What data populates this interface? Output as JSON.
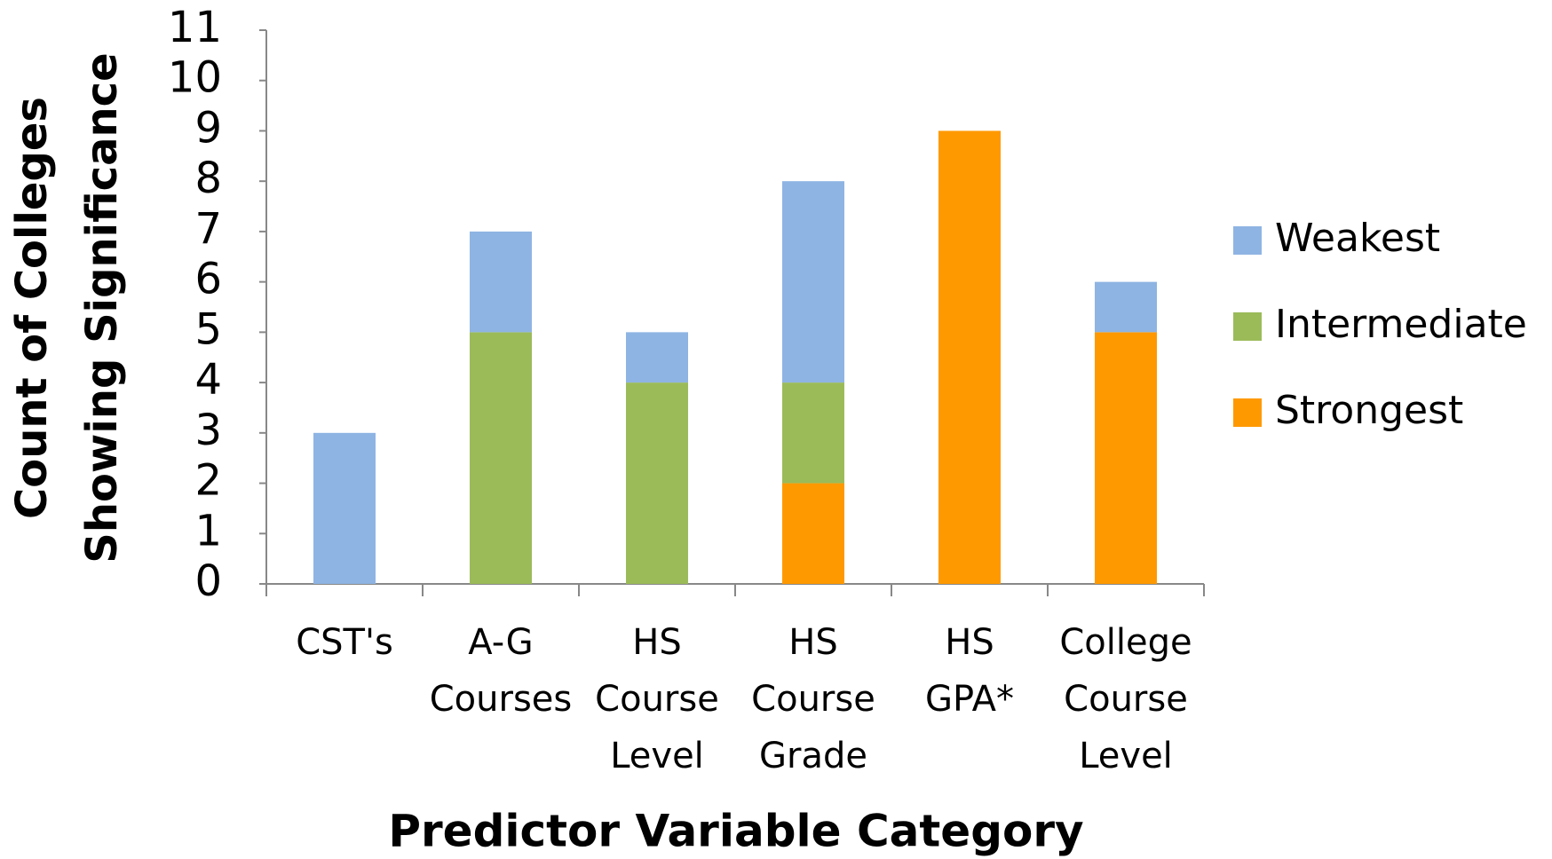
{
  "chart_data": {
    "type": "stacked_bar",
    "x_label": "Predictor Variable Category",
    "y_label": [
      "Count of Colleges",
      "Showing Significance"
    ],
    "categories": [
      "CST's",
      "A-G Courses",
      "HS Course Level",
      "HS Course Grade",
      "HS GPA*",
      "College Course Level"
    ],
    "series": [
      {
        "name": "Strongest",
        "color": "#ff9900",
        "values": [
          0,
          0,
          0,
          2,
          9,
          5
        ]
      },
      {
        "name": "Intermediate",
        "color": "#9bbb59",
        "values": [
          0,
          5,
          4,
          2,
          0,
          0
        ]
      },
      {
        "name": "Weakest",
        "color": "#8eb4e3",
        "values": [
          3,
          2,
          1,
          4,
          0,
          1
        ]
      }
    ],
    "legend_order": "reverse",
    "legend_position": "right",
    "ylim": [
      0,
      11
    ],
    "yticks": [
      0,
      1,
      2,
      3,
      4,
      5,
      6,
      7,
      8,
      9,
      10,
      11
    ],
    "grid": false
  }
}
